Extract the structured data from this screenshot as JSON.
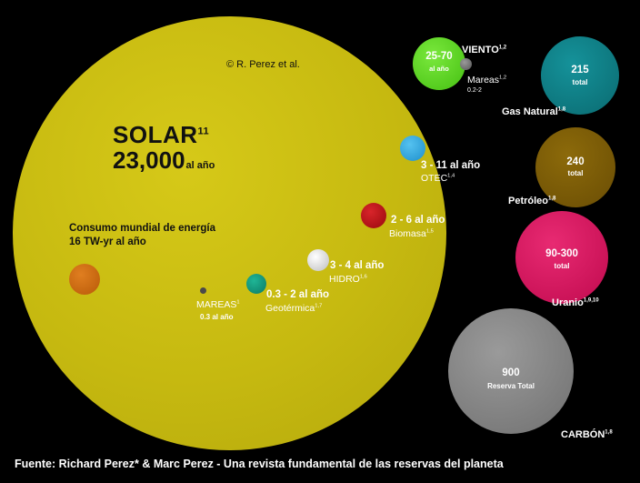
{
  "copyright": "© R. Perez et al.",
  "solar": {
    "title": "SOLAR",
    "title_sup": "11",
    "value": "23,000",
    "unit": "al año"
  },
  "consumo": {
    "line1": "Consumo mundial de energía",
    "line2": "16 TW-yr al año"
  },
  "renewables": {
    "otec": {
      "range": "3 - 11 al año",
      "name": "OTEC",
      "sup": "1,4"
    },
    "biomasa": {
      "range": "2 - 6 al año",
      "name": "Biomasa",
      "sup": "1,5"
    },
    "hidro": {
      "range": "3 - 4 al año",
      "name": "HIDRO",
      "sup": "1,6"
    },
    "geotermica": {
      "range": "0.3 - 2 al año",
      "name": "Geotérmica",
      "sup": "1,7"
    },
    "mareas": {
      "name": "MAREAS",
      "sup": "1",
      "value": "0.3 al año"
    },
    "viento": {
      "range": "25-70",
      "unit": "al año",
      "name": "VIENTO",
      "sup": "1,2"
    },
    "mareas_small": {
      "name": "Mareas",
      "sup": "1,2",
      "value": "0.2-2"
    }
  },
  "reserves": {
    "gas": {
      "value": "215",
      "unit": "total",
      "name": "Gas Natural",
      "sup": "1,8"
    },
    "petroleo": {
      "value": "240",
      "unit": "total",
      "name": "Petróleo",
      "sup": "1,8"
    },
    "uranio": {
      "value": "90-300",
      "unit": "total",
      "name": "Uranio",
      "sup": "1,9,10"
    },
    "carbon": {
      "value": "900",
      "unit": "Reserva Total",
      "name": "CARBÓN",
      "sup": "1,8"
    }
  },
  "source": "Fuente: Richard Perez* & Marc Perez - Una revista fundamental de las reservas del planeta",
  "colors": {
    "background": "#000000",
    "solar": "#c9bc12",
    "consumo": "#c86a10",
    "otec": "#2aa6e0",
    "biomasa": "#b80d13",
    "hidro": "#d8d8d8",
    "geotermica": "#0f9b80",
    "mareas": "#555555",
    "viento": "#63d92a",
    "gas": "#0f7f86",
    "petroleo": "#7c5c06",
    "uranio": "#d80f5c",
    "carbon": "#8a8a8a"
  }
}
